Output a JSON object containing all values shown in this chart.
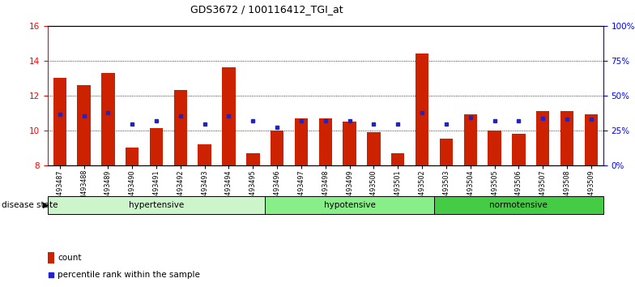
{
  "title": "GDS3672 / 100116412_TGI_at",
  "samples": [
    "GSM493487",
    "GSM493488",
    "GSM493489",
    "GSM493490",
    "GSM493491",
    "GSM493492",
    "GSM493493",
    "GSM493494",
    "GSM493495",
    "GSM493496",
    "GSM493497",
    "GSM493498",
    "GSM493499",
    "GSM493500",
    "GSM493501",
    "GSM493502",
    "GSM493503",
    "GSM493504",
    "GSM493505",
    "GSM493506",
    "GSM493507",
    "GSM493508",
    "GSM493509"
  ],
  "bar_values": [
    13.0,
    12.6,
    13.3,
    9.0,
    10.1,
    12.3,
    9.2,
    13.6,
    8.7,
    10.0,
    10.7,
    10.7,
    10.5,
    9.9,
    8.7,
    14.4,
    9.5,
    10.9,
    10.0,
    9.8,
    11.1,
    11.1,
    10.9
  ],
  "dot_values": [
    10.9,
    10.8,
    11.0,
    10.35,
    10.55,
    10.8,
    10.35,
    10.8,
    10.55,
    10.15,
    10.55,
    10.55,
    10.55,
    10.35,
    10.35,
    11.0,
    10.35,
    10.75,
    10.55,
    10.55,
    10.7,
    10.65,
    10.65
  ],
  "groups": [
    {
      "label": "hypertensive",
      "start": 0,
      "end": 8,
      "color": "#ccf5cc"
    },
    {
      "label": "hypotensive",
      "start": 9,
      "end": 15,
      "color": "#88ee88"
    },
    {
      "label": "normotensive",
      "start": 16,
      "end": 22,
      "color": "#44cc44"
    }
  ],
  "bar_color": "#cc2200",
  "dot_color": "#2222cc",
  "ylim_left": [
    8,
    16
  ],
  "ylim_right": [
    0,
    100
  ],
  "yticks_left": [
    8,
    10,
    12,
    14,
    16
  ],
  "yticks_right": [
    0,
    25,
    50,
    75,
    100
  ],
  "ytick_labels_right": [
    "0%",
    "25%",
    "50%",
    "75%",
    "100%"
  ],
  "bar_width": 0.55,
  "background_color": "#ffffff"
}
